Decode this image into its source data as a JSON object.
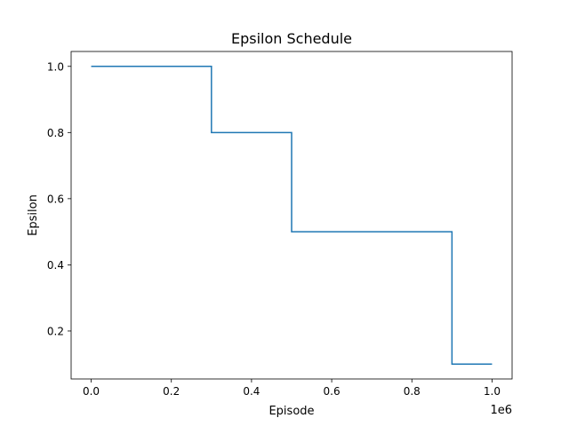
{
  "chart_data": {
    "type": "line",
    "drawstyle": "step",
    "title": "Epsilon Schedule",
    "xlabel": "Episode",
    "ylabel": "Epsilon",
    "x_offset_label": "1e6",
    "x_scale": 1000000,
    "xlim": [
      -50000,
      1050000
    ],
    "ylim": [
      0.055,
      1.045
    ],
    "x_ticks": [
      0,
      200000,
      400000,
      600000,
      800000,
      1000000
    ],
    "x_tick_labels": [
      "0.0",
      "0.2",
      "0.4",
      "0.6",
      "0.8",
      "1.0"
    ],
    "y_ticks": [
      0.2,
      0.4,
      0.6,
      0.8,
      1.0
    ],
    "y_tick_labels": [
      "0.2",
      "0.4",
      "0.6",
      "0.8",
      "1.0"
    ],
    "grid": false,
    "series": [
      {
        "color": "#1f77b4",
        "points": [
          {
            "x": 0,
            "y": 1.0
          },
          {
            "x": 300000,
            "y": 1.0
          },
          {
            "x": 300000,
            "y": 0.8
          },
          {
            "x": 500000,
            "y": 0.8
          },
          {
            "x": 500000,
            "y": 0.5
          },
          {
            "x": 900000,
            "y": 0.5
          },
          {
            "x": 900000,
            "y": 0.1
          },
          {
            "x": 1000000,
            "y": 0.1
          }
        ]
      }
    ]
  }
}
